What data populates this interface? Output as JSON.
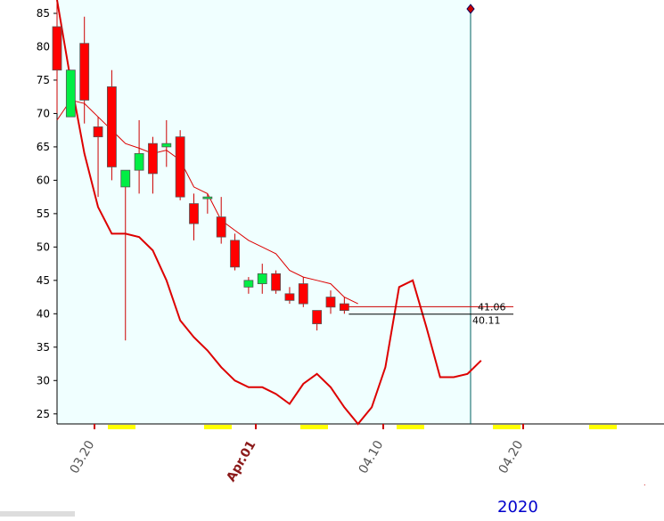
{
  "chart_data": {
    "type": "candlestick",
    "year_label": "2020",
    "date_ticks": [
      {
        "label": "03.20",
        "highlight": false
      },
      {
        "label": "Apr.01",
        "highlight": true
      },
      {
        "label": "04.10",
        "highlight": false
      },
      {
        "label": "04.20",
        "highlight": false
      }
    ],
    "y_ticks": [
      25,
      30,
      35,
      40,
      45,
      50,
      55,
      60,
      65,
      70,
      75,
      80,
      85
    ],
    "ylim": [
      23.5,
      87
    ],
    "price_labels": [
      "41.06",
      "40.11"
    ],
    "candles": [
      {
        "o": 76.5,
        "h": 87,
        "l": 70,
        "c": 83,
        "color": "red"
      },
      {
        "o": 69.5,
        "h": 76.5,
        "l": 69.5,
        "c": 76.5,
        "color": "green"
      },
      {
        "o": 80.5,
        "h": 84.5,
        "l": 68.5,
        "c": 72,
        "color": "red"
      },
      {
        "o": 68,
        "h": 69.5,
        "l": 57.5,
        "c": 66.5,
        "color": "red"
      },
      {
        "o": 74,
        "h": 76.5,
        "l": 60,
        "c": 62,
        "color": "red"
      },
      {
        "o": 59,
        "h": 61.5,
        "l": 36,
        "c": 61.5,
        "color": "green"
      },
      {
        "o": 61.5,
        "h": 69,
        "l": 58,
        "c": 64,
        "color": "green"
      },
      {
        "o": 65.5,
        "h": 66.5,
        "l": 58,
        "c": 61,
        "color": "red"
      },
      {
        "o": 65,
        "h": 69,
        "l": 62,
        "c": 65.5,
        "color": "green"
      },
      {
        "o": 66.5,
        "h": 67.5,
        "l": 57,
        "c": 57.5,
        "color": "red"
      },
      {
        "o": 56.5,
        "h": 58,
        "l": 51,
        "c": 53.5,
        "color": "red"
      },
      {
        "o": 57.5,
        "h": 58,
        "l": 55,
        "c": 57.5,
        "color": "doji"
      },
      {
        "o": 54.5,
        "h": 57.5,
        "l": 50.5,
        "c": 51.5,
        "color": "red"
      },
      {
        "o": 51,
        "h": 52,
        "l": 46.5,
        "c": 47,
        "color": "red"
      },
      {
        "o": 44,
        "h": 45.5,
        "l": 43,
        "c": 45,
        "color": "green"
      },
      {
        "o": 44.5,
        "h": 47.5,
        "l": 43,
        "c": 46,
        "color": "green"
      },
      {
        "o": 46,
        "h": 46.5,
        "l": 43,
        "c": 43.5,
        "color": "red"
      },
      {
        "o": 43,
        "h": 44,
        "l": 41.5,
        "c": 42,
        "color": "red"
      },
      {
        "o": 44.5,
        "h": 45.5,
        "l": 41,
        "c": 41.5,
        "color": "red"
      },
      {
        "o": 40.5,
        "h": 40.5,
        "l": 37.5,
        "c": 38.5,
        "color": "red"
      },
      {
        "o": 42.5,
        "h": 43.5,
        "l": 40,
        "c": 41,
        "color": "red"
      },
      {
        "o": 41.5,
        "h": 42.5,
        "l": 40,
        "c": 40.5,
        "color": "red"
      }
    ],
    "series": [
      {
        "type": "line",
        "role": "short-ma",
        "values": [
          69,
          72,
          71.5,
          69.5,
          67.5,
          65.5,
          64.8,
          64,
          64.5,
          63,
          59,
          58,
          54,
          52.5,
          51,
          50,
          49,
          46.5,
          45.5,
          45,
          44.5,
          42.5,
          41.5
        ]
      },
      {
        "type": "line",
        "role": "projection",
        "values": [
          87,
          75,
          64,
          56,
          52,
          52,
          51.5,
          49.5,
          45,
          39,
          36.5,
          34.5,
          32,
          30,
          29,
          29,
          28,
          26.5,
          29.5,
          31,
          29,
          26,
          23.5,
          26,
          32,
          44,
          45,
          38,
          30.5,
          30.5,
          31,
          33
        ]
      }
    ],
    "grid": false,
    "legend": "none"
  }
}
